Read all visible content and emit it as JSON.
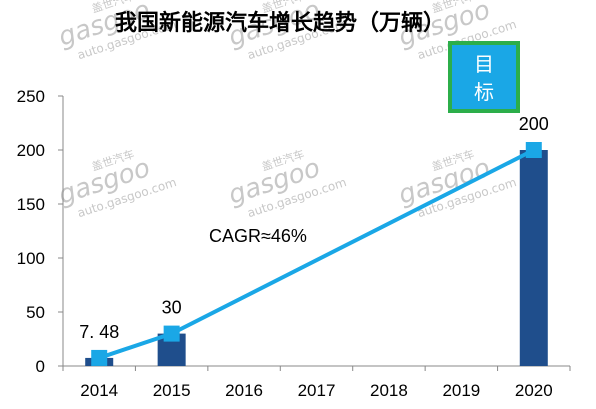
{
  "chart_data": {
    "type": "bar",
    "title": "我国新能源汽车增长趋势（万辆）",
    "categories": [
      "2014",
      "2015",
      "2016",
      "2017",
      "2018",
      "2019",
      "2020"
    ],
    "values": [
      7.48,
      30,
      null,
      null,
      null,
      null,
      200
    ],
    "data_labels": [
      "7. 48",
      "30",
      "",
      "",
      "",
      "",
      "200"
    ],
    "trend_line": {
      "x": [
        "2014",
        "2015",
        "2020"
      ],
      "values": [
        7.48,
        30,
        200
      ]
    },
    "ylim": [
      0,
      250
    ],
    "yticks": [
      0,
      50,
      100,
      150,
      200,
      250
    ],
    "grid": false,
    "legend": "none",
    "annotation": "CAGR≈46%",
    "target_label": "目\n标",
    "colors": {
      "bar": "#1f4e8c",
      "line": "#1aa7e6",
      "marker": "#1aa7e6",
      "target_box": "#1aa7e6",
      "target_border": "#2cae4a"
    }
  },
  "watermark": {
    "brand": "gasgoo",
    "cn": "盖世汽车",
    "url": "auto.gasgoo.com"
  }
}
